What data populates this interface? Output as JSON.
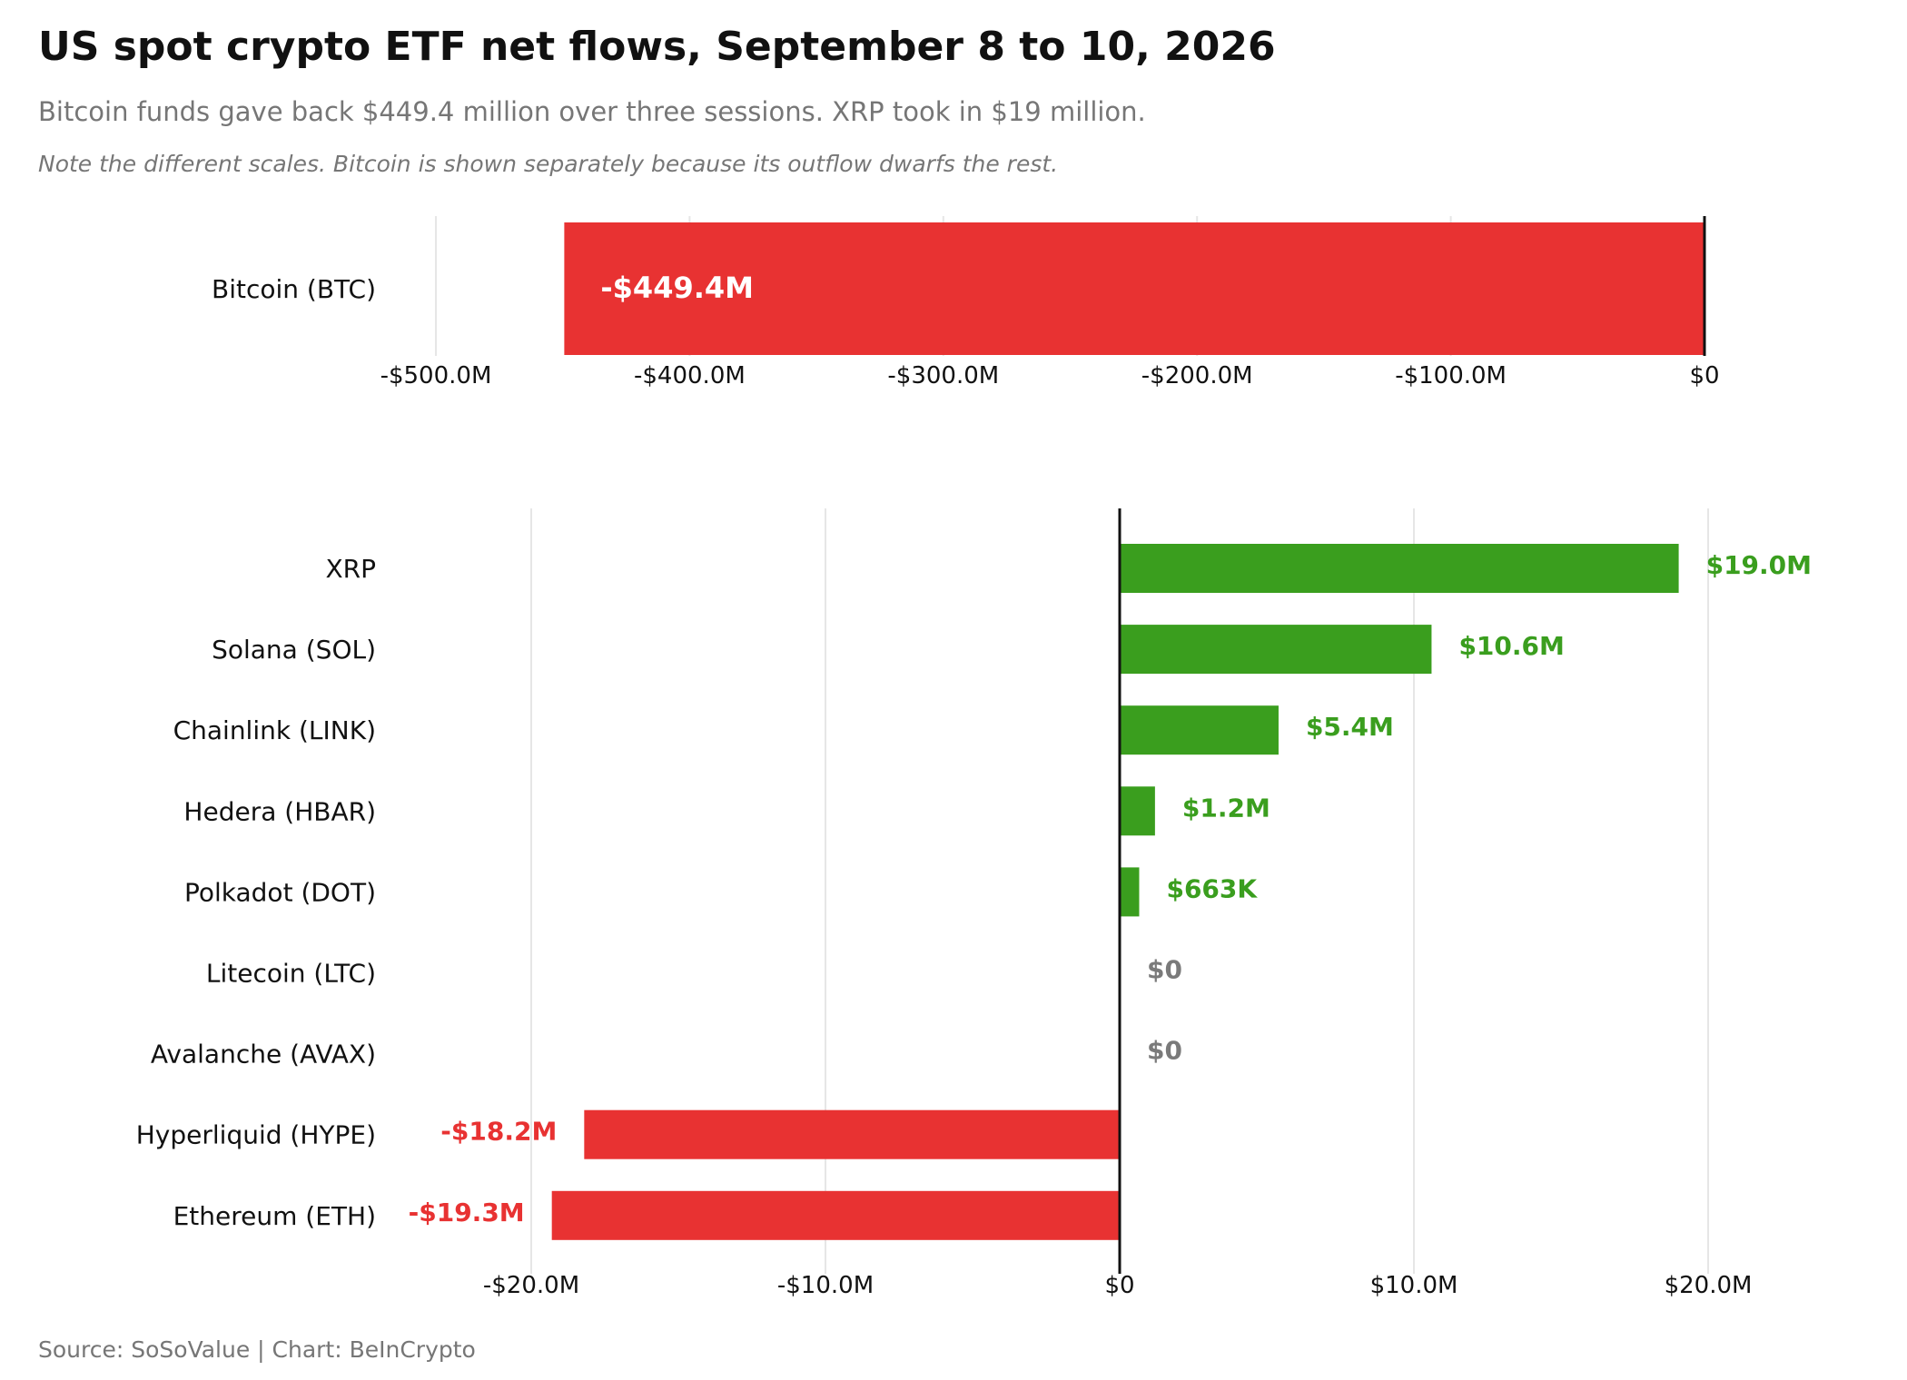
{
  "title": "US spot crypto ETF net flows, September 8 to 10, 2026",
  "subtitle": "Bitcoin funds gave back $449.4 million over three sessions. XRP took in $19 million.",
  "note": "Note the different scales. Bitcoin is shown separately because its outflow dwarfs the rest.",
  "source": "Source: SoSoValue  |  Chart: BeInCrypto",
  "colors": {
    "positive": "#3a9e1e",
    "negative": "#e83232",
    "zero": "#7a7a7a",
    "grid": "#e6e6e6",
    "axis": "#111111"
  },
  "chart_data": [
    {
      "type": "bar",
      "orientation": "horizontal",
      "unit": "USD millions",
      "categories": [
        "Bitcoin (BTC)"
      ],
      "values": [
        -449.4
      ],
      "value_labels": [
        "-$449.4M"
      ],
      "xlim": [
        -500,
        0
      ],
      "ticks": [
        -500,
        -400,
        -300,
        -200,
        -100,
        0
      ],
      "tick_labels": [
        "-$500.0M",
        "-$400.0M",
        "-$300.0M",
        "-$200.0M",
        "-$100.0M",
        "$0"
      ],
      "grid": true
    },
    {
      "type": "bar",
      "orientation": "horizontal",
      "unit": "USD millions",
      "categories": [
        "XRP",
        "Solana (SOL)",
        "Chainlink (LINK)",
        "Hedera (HBAR)",
        "Polkadot (DOT)",
        "Litecoin (LTC)",
        "Avalanche (AVAX)",
        "Hyperliquid (HYPE)",
        "Ethereum (ETH)"
      ],
      "values": [
        19.0,
        10.6,
        5.4,
        1.2,
        0.663,
        0,
        0,
        -18.2,
        -19.3
      ],
      "value_labels": [
        "$19.0M",
        "$10.6M",
        "$5.4M",
        "$1.2M",
        "$663K",
        "$0",
        "$0",
        "-$18.2M",
        "-$19.3M"
      ],
      "xlim": [
        -20,
        20
      ],
      "ticks": [
        -20,
        -10,
        0,
        10,
        20
      ],
      "tick_labels": [
        "-$20.0M",
        "-$10.0M",
        "$0",
        "$10.0M",
        "$20.0M"
      ],
      "grid": true
    }
  ]
}
